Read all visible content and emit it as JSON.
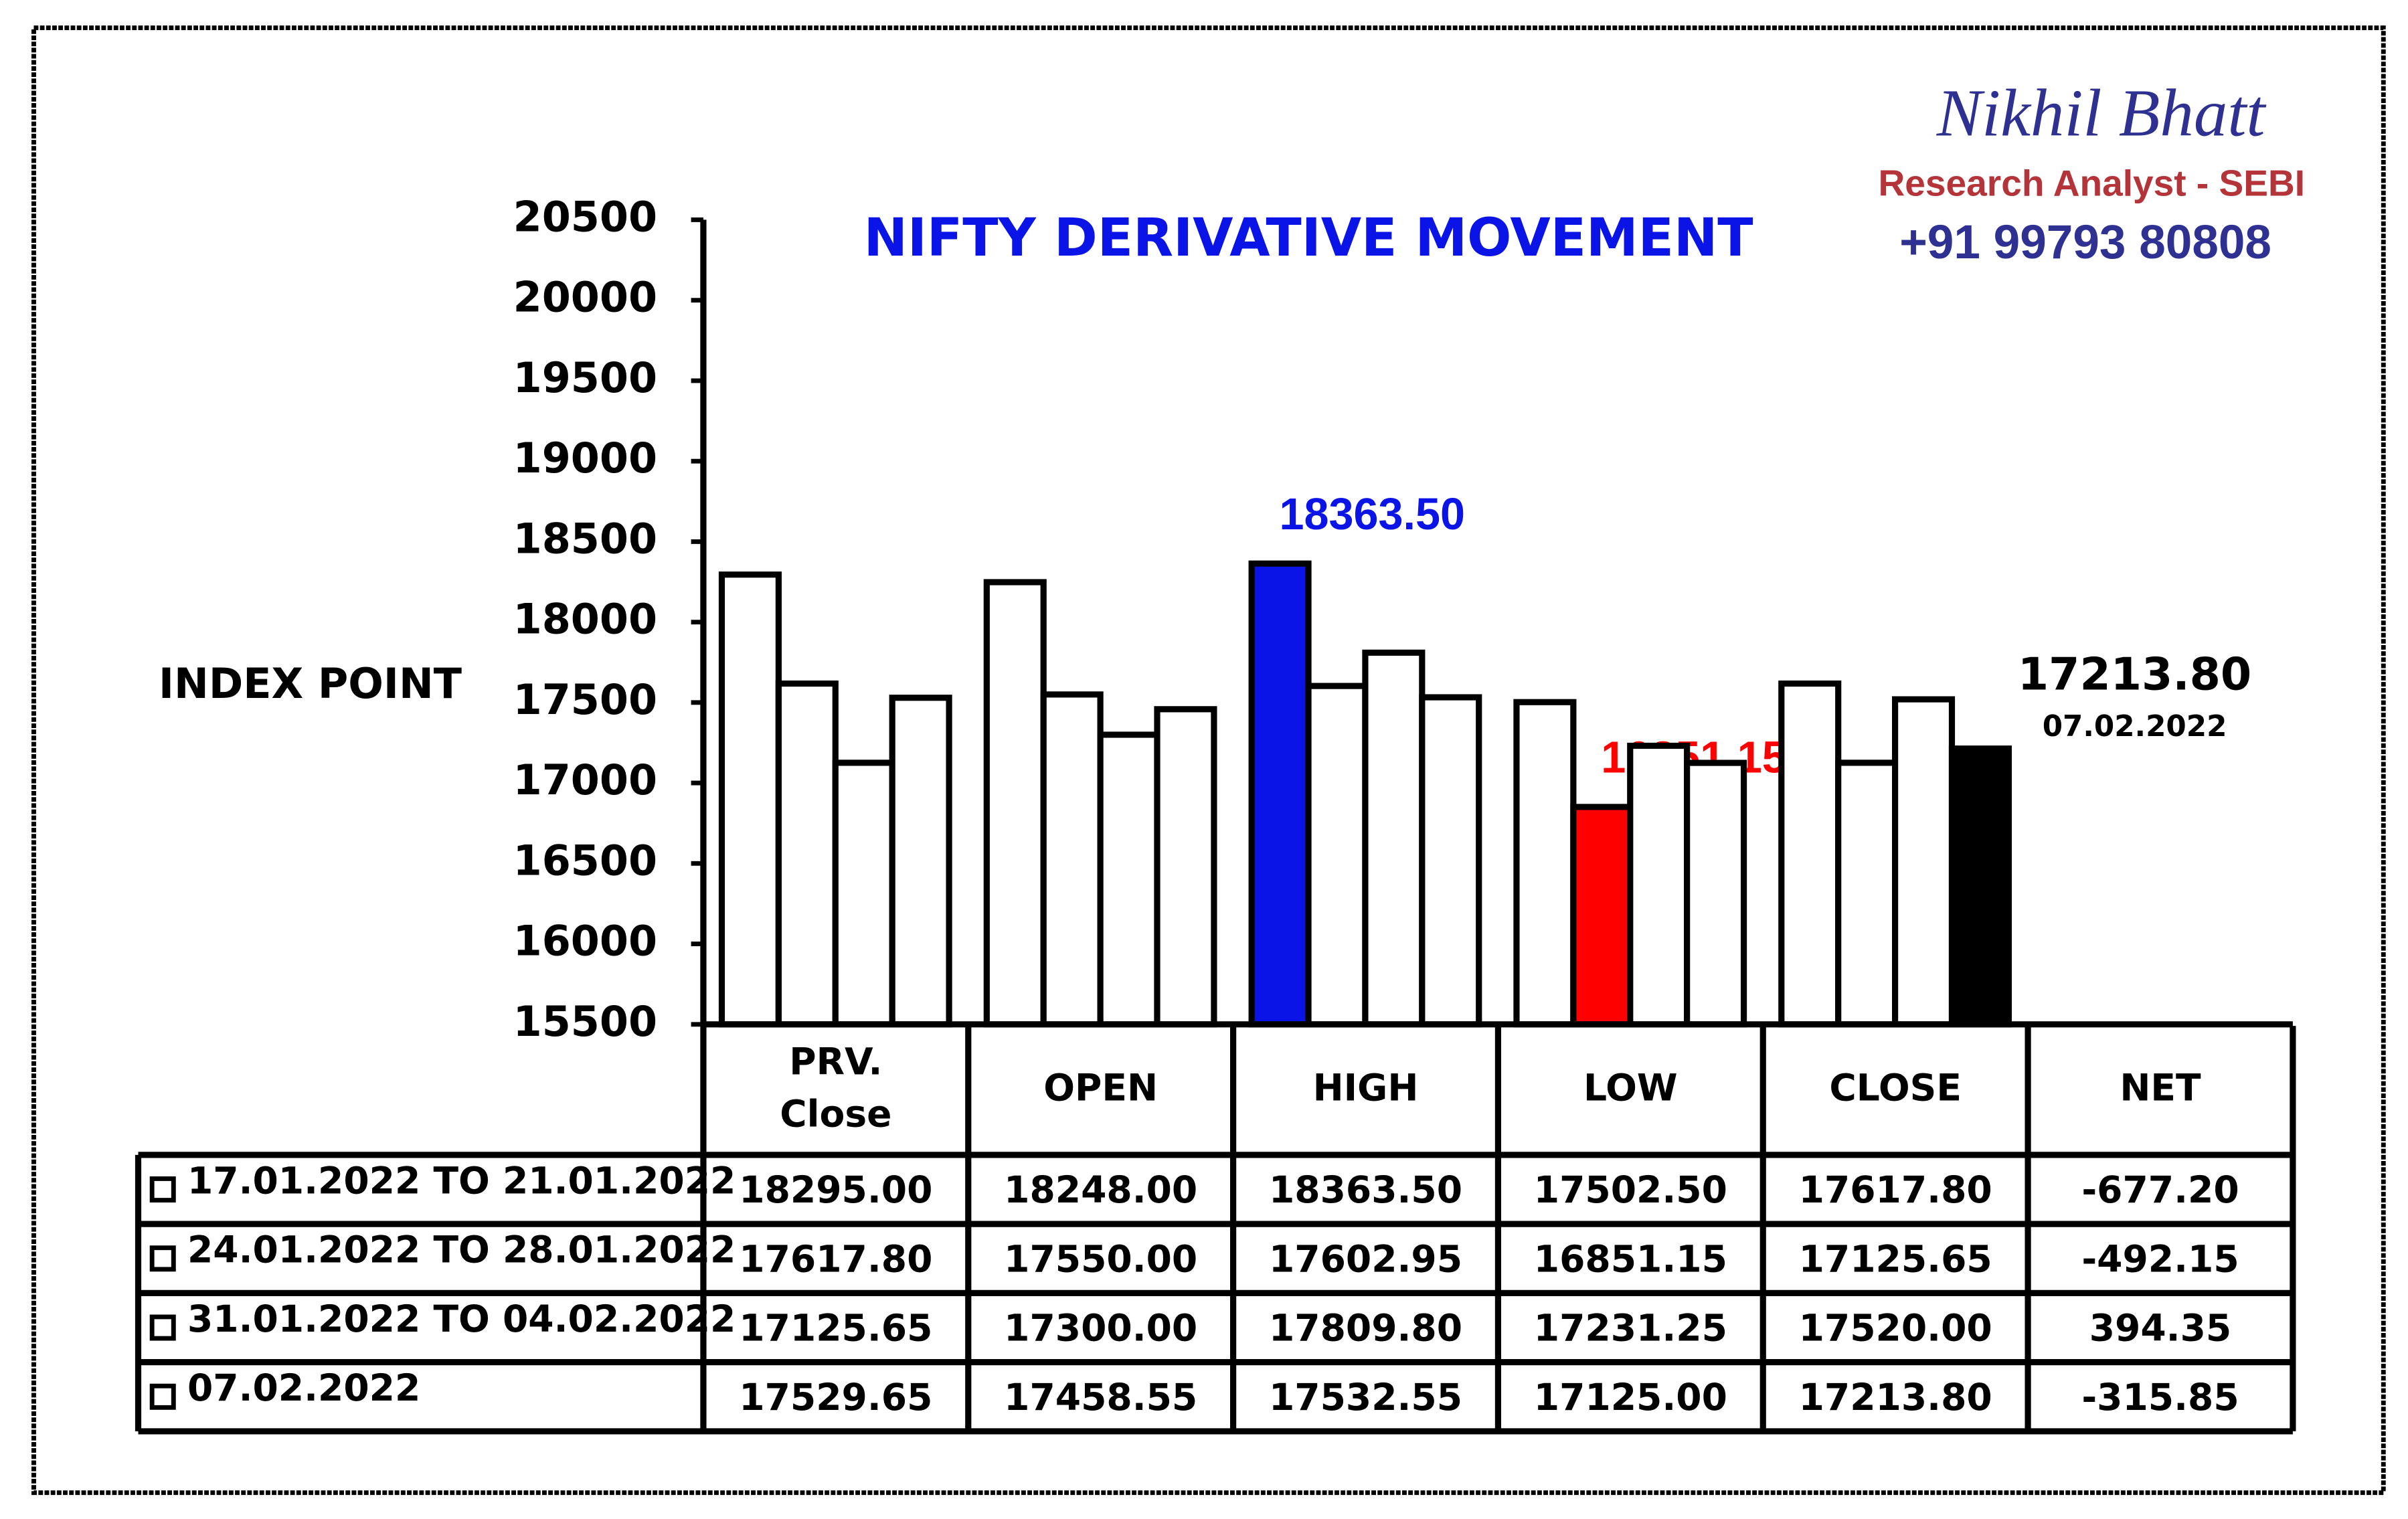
{
  "chart_data": {
    "type": "bar",
    "title": "NIFTY DERIVATIVE MOVEMENT",
    "author": "Nikhil Bhatt",
    "author_role": "Research Analyst - SEBI",
    "phone": "+91 99793 80808",
    "y_label": "INDEX POINT",
    "categories": [
      "PRV. Close",
      "OPEN",
      "HIGH",
      "LOW",
      "CLOSE"
    ],
    "net_header": "NET",
    "ylim": [
      15500,
      20500
    ],
    "yticks": [
      15500,
      16000,
      16500,
      17000,
      17500,
      18000,
      18500,
      19000,
      19500,
      20000,
      20500
    ],
    "series": [
      {
        "name": "17.01.2022 TO 21.01.2022",
        "values": [
          18295,
          18248,
          18363.5,
          17502.5,
          17617.8
        ],
        "value_labels": [
          "18295.00",
          "18248.00",
          "18363.50",
          "17502.50",
          "17617.80"
        ],
        "colors": [
          "#ffffff",
          "#ffffff",
          "#0a14e6",
          "#ffffff",
          "#ffffff"
        ],
        "net": -677.2,
        "net_label": "-677.20"
      },
      {
        "name": "24.01.2022 TO 28.01.2022",
        "values": [
          17617.8,
          17550,
          17602.95,
          16851.15,
          17125.65
        ],
        "value_labels": [
          "17617.80",
          "17550.00",
          "17602.95",
          "16851.15",
          "17125.65"
        ],
        "colors": [
          "#ffffff",
          "#ffffff",
          "#ffffff",
          "#ff0000",
          "#ffffff"
        ],
        "net": -492.15,
        "net_label": "-492.15"
      },
      {
        "name": "31.01.2022 TO 04.02.2022",
        "values": [
          17125.65,
          17300,
          17809.8,
          17231.25,
          17520
        ],
        "value_labels": [
          "17125.65",
          "17300.00",
          "17809.80",
          "17231.25",
          "17520.00"
        ],
        "colors": [
          "#ffffff",
          "#ffffff",
          "#ffffff",
          "#ffffff",
          "#ffffff"
        ],
        "net": 394.35,
        "net_label": "394.35"
      },
      {
        "name": "07.02.2022",
        "values": [
          17529.65,
          17458.55,
          17532.55,
          17125,
          17213.8
        ],
        "value_labels": [
          "17529.65",
          "17458.55",
          "17532.55",
          "17125.00",
          "17213.80"
        ],
        "colors": [
          "#ffffff",
          "#ffffff",
          "#ffffff",
          "#ffffff",
          "#000000"
        ],
        "net": -315.85,
        "net_label": "-315.85"
      }
    ]
  }
}
